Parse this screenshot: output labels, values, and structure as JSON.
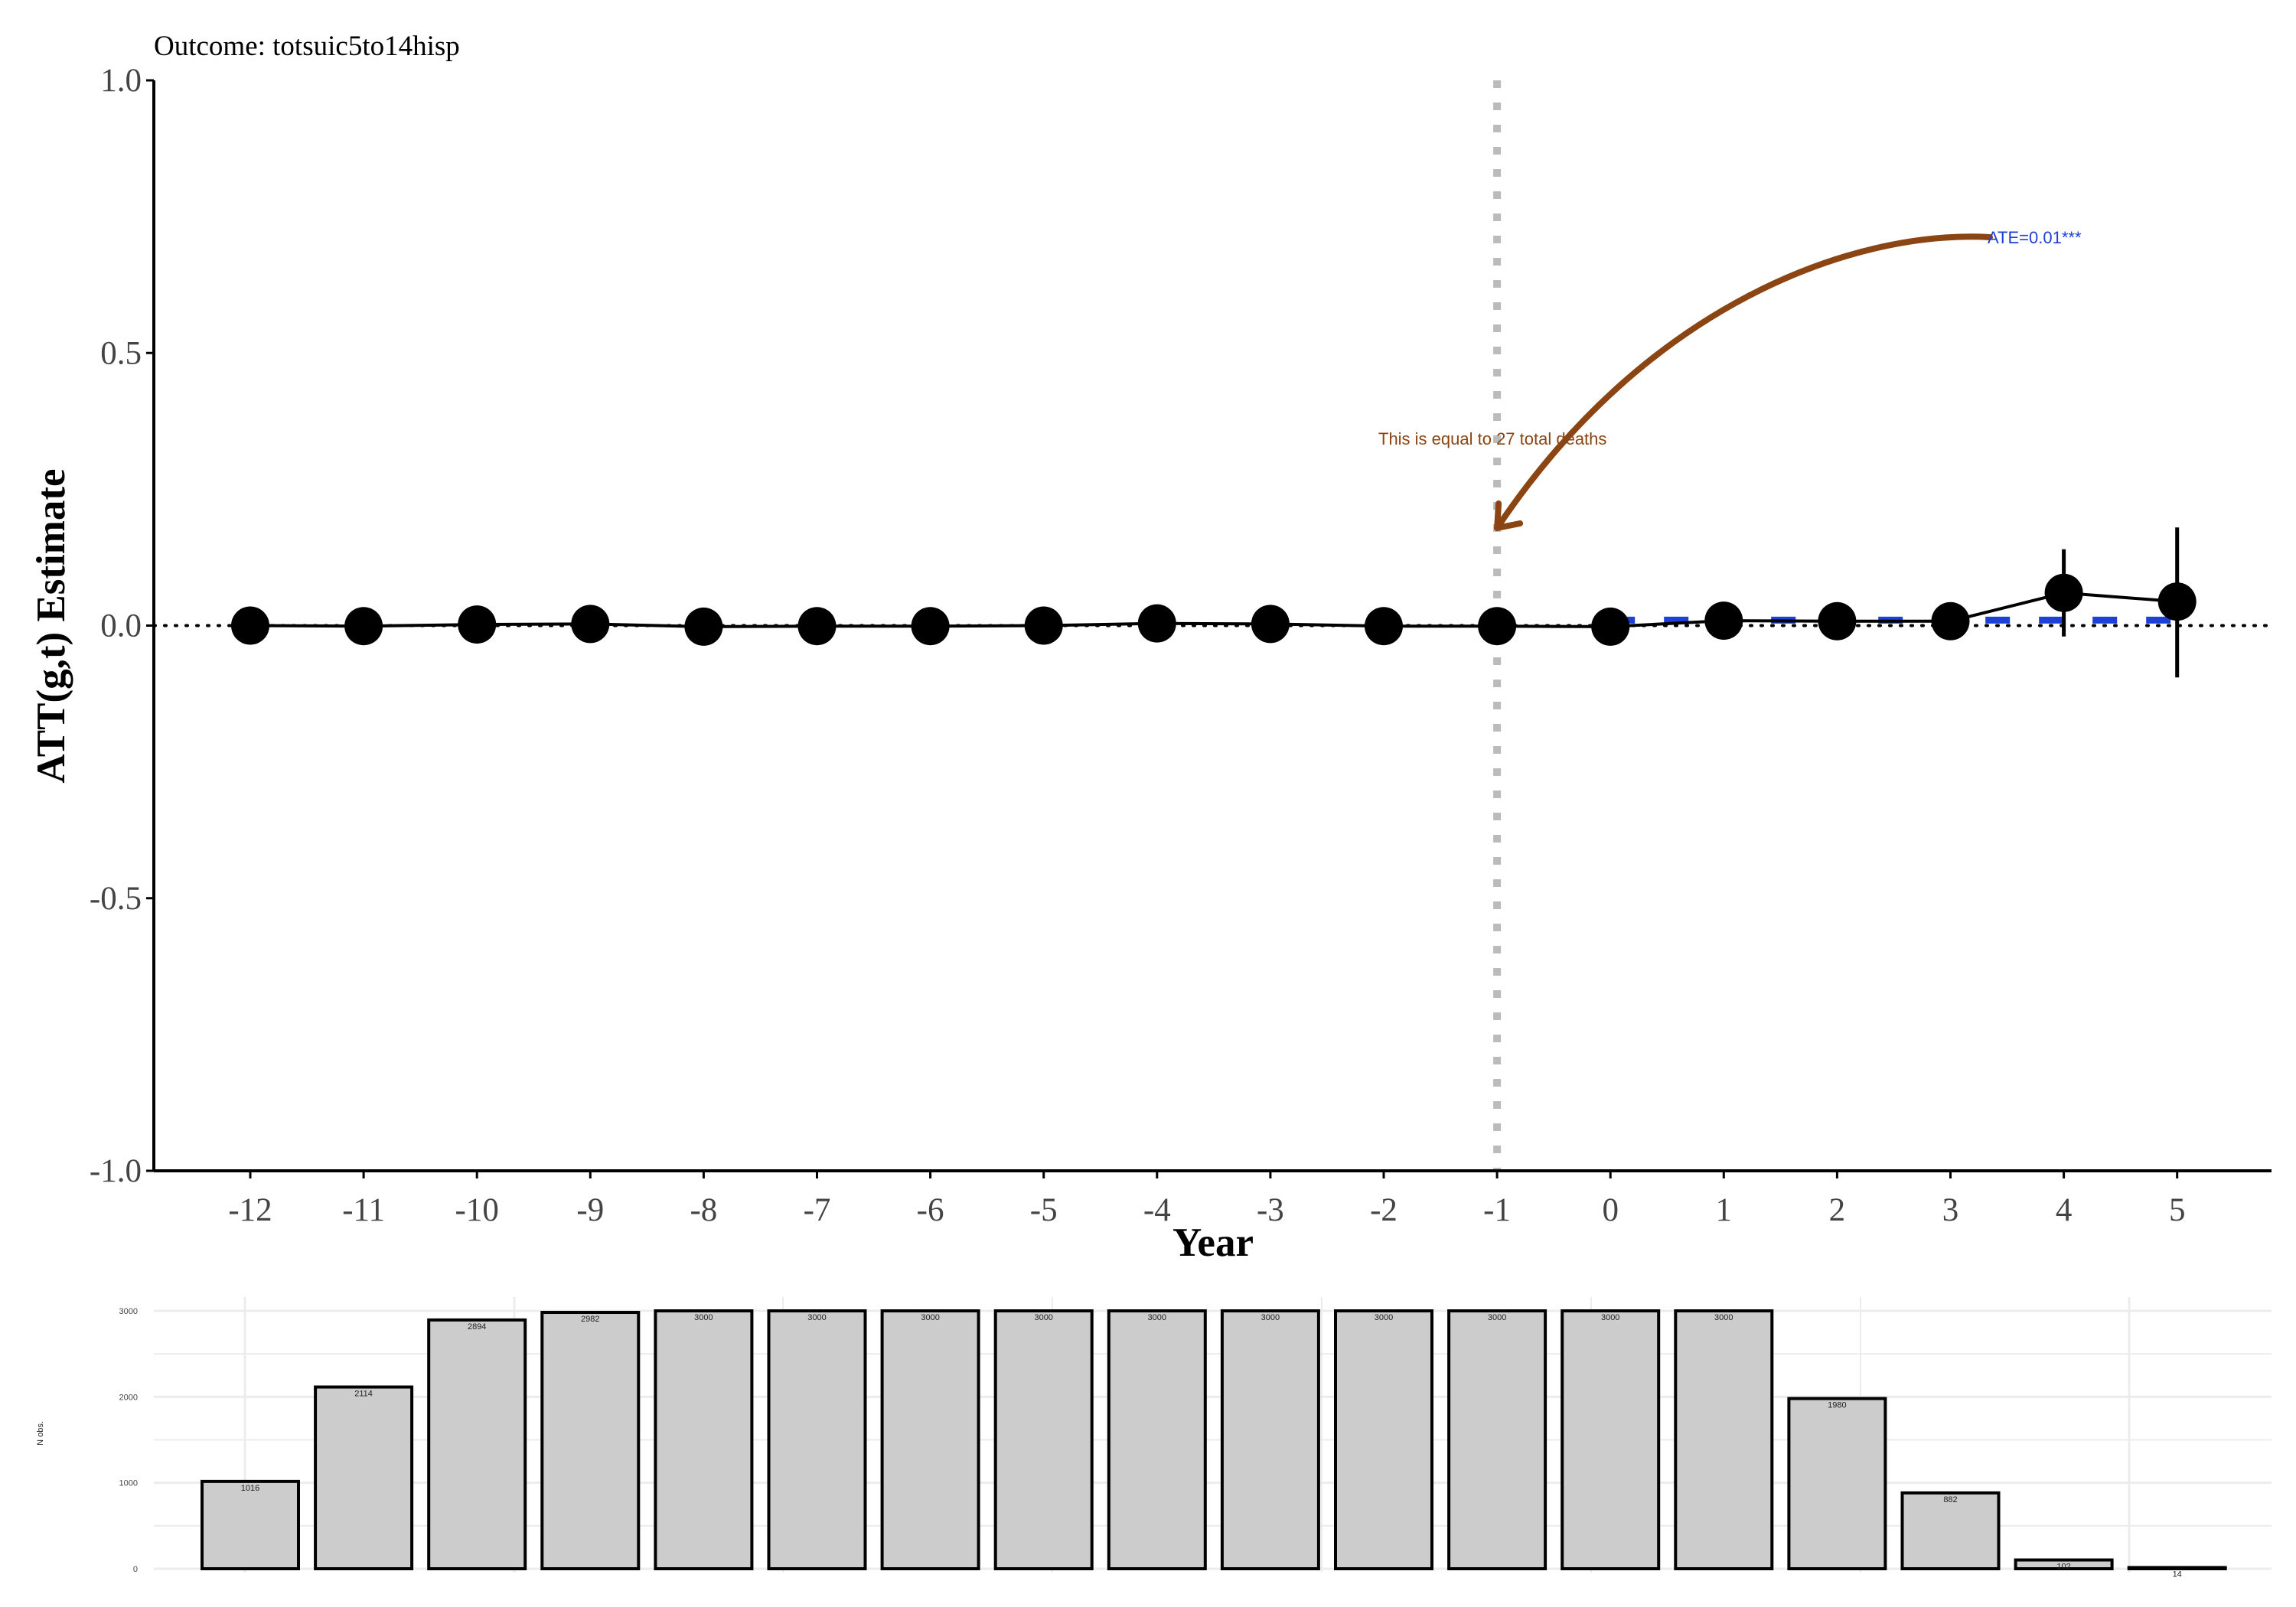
{
  "chart_data": [
    {
      "type": "line",
      "title": "Outcome: totsuic5to14hisp",
      "xlabel": "Year",
      "ylabel": "ATT(g,t) Estimate",
      "ylim": [
        -1.0,
        1.0
      ],
      "y_ticks": [
        "1.0",
        "0.5",
        "0.0",
        "-0.5",
        "-1.0"
      ],
      "x_ticks": [
        "-12",
        "-11",
        "-10",
        "-9",
        "-8",
        "-7",
        "-6",
        "-5",
        "-4",
        "-3",
        "-2",
        "-1",
        "0",
        "1",
        "2",
        "3",
        "4",
        "5"
      ],
      "grid": false,
      "reference_lines": {
        "horizontal_y": 0.0,
        "vertical_x": -1
      },
      "series": [
        {
          "x": [
            -12,
            -11,
            -10,
            -9,
            -8,
            -7,
            -6,
            -5,
            -4,
            -3,
            -2,
            -1,
            0,
            1,
            2,
            3,
            4,
            5
          ],
          "y": [
            0.0,
            -0.001,
            0.002,
            0.003,
            -0.002,
            -0.001,
            -0.001,
            0.0,
            0.004,
            0.003,
            -0.001,
            -0.001,
            -0.002,
            0.009,
            0.008,
            0.008,
            0.06,
            0.044
          ],
          "ci_low": [
            null,
            null,
            null,
            null,
            null,
            null,
            null,
            null,
            null,
            null,
            null,
            null,
            null,
            null,
            null,
            null,
            -0.02,
            -0.095
          ],
          "ci_high": [
            null,
            null,
            null,
            null,
            null,
            null,
            null,
            null,
            null,
            null,
            null,
            null,
            null,
            null,
            null,
            null,
            0.14,
            0.18
          ]
        }
      ],
      "ate_line": {
        "value": 0.01,
        "x_from": 0,
        "x_to": 5
      },
      "annotations": [
        {
          "text": "ATE=0.01***",
          "color": "#1f3fd6"
        },
        {
          "text": "This is equal to 27 total deaths",
          "color": "#8b4513"
        }
      ],
      "colors": {
        "points": "#000000",
        "ate": "#1f3fd6",
        "arrow": "#8b4513",
        "vline": "#bbbbbb"
      }
    },
    {
      "type": "bar",
      "ylabel": "N obs.",
      "ylim": [
        0,
        3000
      ],
      "y_ticks": [
        "0",
        "1000",
        "2000",
        "3000"
      ],
      "grid": true,
      "categories": [
        "-12",
        "-11",
        "-10",
        "-9",
        "-8",
        "-7",
        "-6",
        "-5",
        "-4",
        "-3",
        "-2",
        "-1",
        "0",
        "1",
        "2",
        "3",
        "4",
        "5"
      ],
      "values": [
        1016,
        2114,
        2894,
        2982,
        3000,
        3000,
        3000,
        3000,
        3000,
        3000,
        3000,
        3000,
        3000,
        3000,
        1980,
        882,
        102,
        14
      ],
      "labels": [
        "1016",
        "2114",
        "2894",
        "2982",
        "3000",
        "3000",
        "3000",
        "3000",
        "3000",
        "3000",
        "3000",
        "3000",
        "3000",
        "3000",
        "1980",
        "882",
        "102",
        "14"
      ],
      "colors": {
        "fill": "#cccccc",
        "stroke": "#000000"
      }
    }
  ]
}
